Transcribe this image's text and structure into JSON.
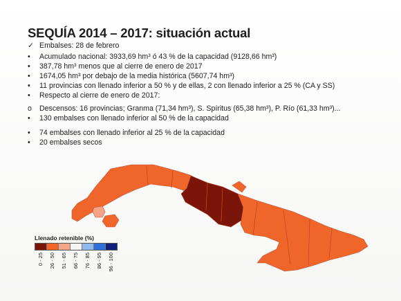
{
  "title": "SEQUÍA 2014 – 2017: situación actual",
  "lines": [
    {
      "marker": "✓",
      "text": "Embalses: 28 de febrero"
    },
    {
      "marker": "•",
      "text": "Acumulado nacional: 3933,69 hm³ ó 43 % de la capacidad (9128,66 hm³)"
    },
    {
      "marker": "•",
      "text": "387,78 hm³ menos que al cierre de enero de 2017"
    },
    {
      "marker": "•",
      "text": "1674,05 hm³ por debajo de la media histórica (5607,74 hm³)"
    },
    {
      "marker": "•",
      "text": "11 provincias con llenado inferior a 50 % y de ellas, 2 con llenado inferior a 25 % (CA y SS)"
    },
    {
      "marker": "•",
      "text": "Respecto al cierre de enero de 2017:"
    },
    {
      "marker": "o",
      "text": "Descensos: 16 provincias; Granma (71,34 hm³), S. Spíritus (65,38 hm³), P. Río (61,33 hm³)..."
    },
    {
      "marker": "•",
      "text": "130 embalses con llenado inferior al 50 % de la capacidad"
    },
    {
      "marker": "•",
      "text": "74 embalses con llenado inferior al 25 % de la capacidad"
    },
    {
      "marker": "•",
      "text": "20 embalses secos"
    }
  ],
  "legend": {
    "title": "Llenado retenible (%)",
    "classes": [
      {
        "label": "0 - 25",
        "color": "#7b1509"
      },
      {
        "label": "26 - 50",
        "color": "#f0652a"
      },
      {
        "label": "51 - 65",
        "color": "#f4a488"
      },
      {
        "label": "66 - 75",
        "color": "#f4f4f4"
      },
      {
        "label": "76 - 85",
        "color": "#8fb8ec"
      },
      {
        "label": "86 - 95",
        "color": "#2f6fd8"
      },
      {
        "label": "96 - 100",
        "color": "#10207a"
      }
    ]
  },
  "map_colors": {
    "low": "#7b1509",
    "mid": "#f0652a",
    "high": "#f4a488",
    "sea": "#d4d4d4"
  }
}
